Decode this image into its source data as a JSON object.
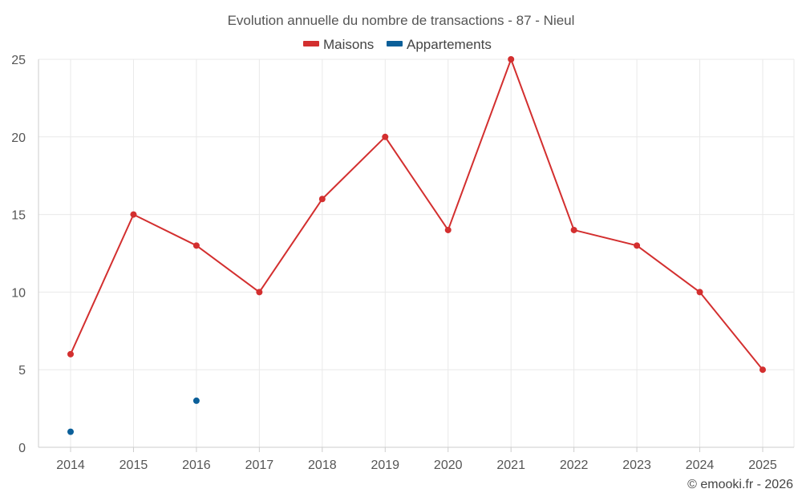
{
  "chart_data": {
    "type": "line",
    "title": "Evolution annuelle du nombre de transactions - 87 - Nieul",
    "x": [
      "2014",
      "2015",
      "2016",
      "2017",
      "2018",
      "2019",
      "2020",
      "2021",
      "2022",
      "2023",
      "2024",
      "2025"
    ],
    "series": [
      {
        "name": "Maisons",
        "color": "#d32f2f",
        "values": [
          6,
          15,
          13,
          10,
          16,
          20,
          14,
          25,
          14,
          13,
          10,
          5
        ]
      },
      {
        "name": "Appartements",
        "color": "#0b5f99",
        "values": [
          1,
          null,
          3,
          null,
          null,
          null,
          null,
          null,
          null,
          null,
          null,
          null
        ]
      }
    ],
    "ylim": [
      0,
      25
    ],
    "yticks": [
      "0",
      "5",
      "10",
      "15",
      "20",
      "25"
    ],
    "xlabel": "",
    "ylabel": "",
    "grid": true,
    "legend": "top-center"
  },
  "credit": "© emooki.fr - 2026"
}
